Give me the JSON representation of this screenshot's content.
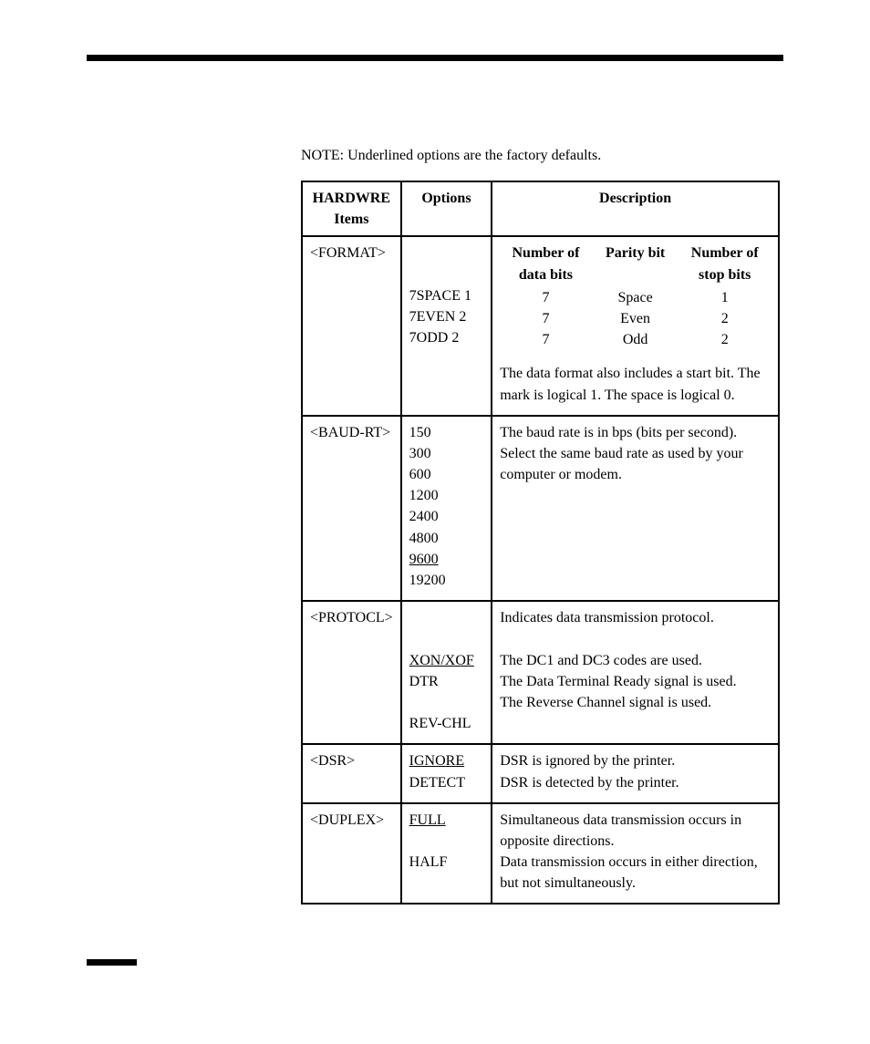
{
  "note": "NOTE:  Underlined options are the factory defaults.",
  "headers": {
    "items": "HARDWRE Items",
    "options": "Options",
    "description": "Description"
  },
  "format": {
    "item": "<FORMAT>",
    "sub_headers": {
      "data_bits": "Number of data bits",
      "parity": "Parity bit",
      "stop_bits": "Number of stop bits"
    },
    "rows": [
      {
        "opt": "7SPACE 1",
        "data": "7",
        "parity": "Space",
        "stop": "1"
      },
      {
        "opt": "7EVEN 2",
        "data": "7",
        "parity": "Even",
        "stop": "2"
      },
      {
        "opt": "7ODD 2",
        "data": "7",
        "parity": "Odd",
        "stop": "2"
      }
    ],
    "desc_para": "The data format also includes a  start bit.  The mark is logical 1.  The space is logical 0."
  },
  "baud": {
    "item": "<BAUD-RT>",
    "options": [
      "150",
      "300",
      "600",
      "1200",
      "2400",
      "4800",
      "9600",
      "19200"
    ],
    "default_index": 6,
    "desc": "The baud rate is in bps (bits per second).  Select the same baud rate as used by your computer or modem."
  },
  "protocl": {
    "item": "<PROTOCL>",
    "intro": "Indicates data transmission protocol.",
    "rows": [
      {
        "opt": "XON/XOF",
        "u": true,
        "desc": "The DC1 and DC3 codes are used."
      },
      {
        "opt": "DTR",
        "u": false,
        "desc": "The Data Terminal Ready signal is used."
      },
      {
        "opt": "REV-CHL",
        "u": false,
        "desc": "The Reverse Channel signal is used."
      }
    ]
  },
  "dsr": {
    "item": "<DSR>",
    "rows": [
      {
        "opt": "IGNORE",
        "u": true,
        "desc": "DSR is ignored by the printer."
      },
      {
        "opt": "DETECT",
        "u": false,
        "desc": "DSR is detected by the printer."
      }
    ]
  },
  "duplex": {
    "item": "<DUPLEX>",
    "rows": [
      {
        "opt": "FULL",
        "u": true,
        "desc": "Simultaneous data transmission occurs in opposite directions."
      },
      {
        "opt": "HALF",
        "u": false,
        "desc": "Data transmission occurs in either direction, but not simultaneously."
      }
    ]
  },
  "colors": {
    "text": "#000000",
    "background": "#ffffff",
    "rule": "#000000"
  },
  "fonts": {
    "body_family": "Palatino Linotype, Book Antiqua, Palatino, Georgia, serif",
    "body_size_pt": 12
  }
}
